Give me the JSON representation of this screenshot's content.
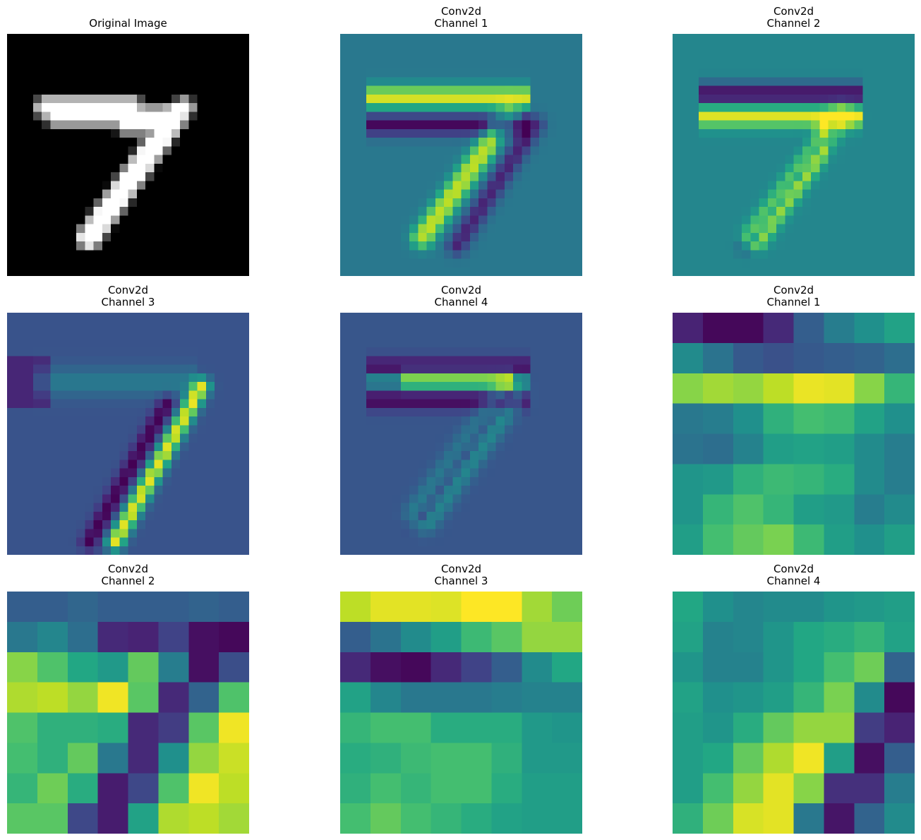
{
  "chart_data": {
    "type": "heatmap",
    "layout": "3x3 grid of image panels, axes off",
    "panels": [
      {
        "id": "original",
        "title": [
          "Original Image"
        ],
        "colormap": "gray",
        "size": [
          28,
          28
        ],
        "description_source": "MNIST digit 7",
        "strokes": [
          {
            "from": [
              8,
              4
            ],
            "to": [
              8,
              14
            ],
            "w": 1.1
          },
          {
            "from": [
              9,
              5
            ],
            "to": [
              9,
              19
            ],
            "w": 1.0
          },
          {
            "from": [
              10,
              13
            ],
            "to": [
              10,
              17
            ],
            "w": 0.9
          },
          {
            "from": [
              8,
              20
            ],
            "to": [
              9,
              18
            ],
            "w": 1.0
          },
          {
            "from": [
              9,
              19
            ],
            "to": [
              23,
              9
            ],
            "w": 1.3
          }
        ]
      },
      {
        "id": "c1_ch1",
        "title": [
          "Conv2d",
          "Channel 1"
        ],
        "colormap": "viridis",
        "size": [
          28,
          28
        ]
      },
      {
        "id": "c1_ch2",
        "title": [
          "Conv2d",
          "Channel 2"
        ],
        "colormap": "viridis",
        "size": [
          28,
          28
        ]
      },
      {
        "id": "c1_ch3",
        "title": [
          "Conv2d",
          "Channel 3"
        ],
        "colormap": "viridis",
        "size": [
          28,
          28
        ]
      },
      {
        "id": "c1_ch4",
        "title": [
          "Conv2d",
          "Channel 4"
        ],
        "colormap": "viridis",
        "size": [
          28,
          28
        ]
      },
      {
        "id": "c2_ch1",
        "title": [
          "Conv2d",
          "Channel 1"
        ],
        "colormap": "viridis",
        "size": [
          8,
          8
        ],
        "values": [
          [
            0.1,
            0.02,
            0.02,
            0.12,
            0.3,
            0.42,
            0.5,
            0.58
          ],
          [
            0.48,
            0.38,
            0.28,
            0.25,
            0.28,
            0.3,
            0.32,
            0.36
          ],
          [
            0.82,
            0.86,
            0.84,
            0.9,
            0.97,
            0.96,
            0.82,
            0.66
          ],
          [
            0.4,
            0.42,
            0.5,
            0.64,
            0.7,
            0.68,
            0.58,
            0.5
          ],
          [
            0.38,
            0.36,
            0.44,
            0.56,
            0.58,
            0.56,
            0.48,
            0.42
          ],
          [
            0.52,
            0.54,
            0.64,
            0.68,
            0.66,
            0.62,
            0.48,
            0.42
          ],
          [
            0.52,
            0.66,
            0.72,
            0.66,
            0.56,
            0.54,
            0.42,
            0.48
          ],
          [
            0.56,
            0.7,
            0.76,
            0.8,
            0.68,
            0.56,
            0.5,
            0.56
          ]
        ]
      },
      {
        "id": "c2_ch2",
        "title": [
          "Conv2d",
          "Channel 2"
        ],
        "colormap": "viridis",
        "size": [
          8,
          8
        ],
        "values": [
          [
            0.3,
            0.3,
            0.33,
            0.3,
            0.3,
            0.3,
            0.32,
            0.3
          ],
          [
            0.4,
            0.46,
            0.36,
            0.12,
            0.1,
            0.2,
            0.04,
            0.02
          ],
          [
            0.82,
            0.72,
            0.6,
            0.54,
            0.76,
            0.42,
            0.04,
            0.24
          ],
          [
            0.88,
            0.9,
            0.84,
            0.98,
            0.74,
            0.12,
            0.32,
            0.72
          ],
          [
            0.72,
            0.64,
            0.64,
            0.62,
            0.12,
            0.18,
            0.74,
            0.98
          ],
          [
            0.7,
            0.64,
            0.76,
            0.4,
            0.12,
            0.5,
            0.84,
            0.92
          ],
          [
            0.66,
            0.78,
            0.62,
            0.08,
            0.22,
            0.72,
            0.98,
            0.9
          ],
          [
            0.74,
            0.74,
            0.22,
            0.08,
            0.58,
            0.88,
            0.9,
            0.86
          ]
        ]
      },
      {
        "id": "c2_ch3",
        "title": [
          "Conv2d",
          "Channel 3"
        ],
        "colormap": "viridis",
        "size": [
          8,
          8
        ],
        "values": [
          [
            0.9,
            0.96,
            0.96,
            0.95,
            1.0,
            1.0,
            0.86,
            0.78
          ],
          [
            0.3,
            0.38,
            0.48,
            0.56,
            0.68,
            0.74,
            0.84,
            0.84
          ],
          [
            0.12,
            0.04,
            0.02,
            0.12,
            0.2,
            0.3,
            0.48,
            0.6
          ],
          [
            0.58,
            0.46,
            0.4,
            0.4,
            0.4,
            0.42,
            0.44,
            0.44
          ],
          [
            0.66,
            0.7,
            0.7,
            0.62,
            0.62,
            0.62,
            0.54,
            0.52
          ],
          [
            0.62,
            0.64,
            0.68,
            0.7,
            0.7,
            0.64,
            0.54,
            0.54
          ],
          [
            0.64,
            0.7,
            0.66,
            0.7,
            0.7,
            0.62,
            0.56,
            0.56
          ],
          [
            0.7,
            0.76,
            0.7,
            0.66,
            0.62,
            0.58,
            0.56,
            0.56
          ]
        ]
      },
      {
        "id": "c2_ch4",
        "title": [
          "Conv2d",
          "Channel 4"
        ],
        "colormap": "viridis",
        "size": [
          8,
          8
        ],
        "values": [
          [
            0.6,
            0.5,
            0.46,
            0.48,
            0.48,
            0.52,
            0.54,
            0.56
          ],
          [
            0.58,
            0.44,
            0.46,
            0.52,
            0.6,
            0.62,
            0.66,
            0.58
          ],
          [
            0.52,
            0.44,
            0.44,
            0.52,
            0.6,
            0.7,
            0.78,
            0.32
          ],
          [
            0.58,
            0.5,
            0.52,
            0.56,
            0.66,
            0.8,
            0.48,
            0.02
          ],
          [
            0.56,
            0.52,
            0.62,
            0.76,
            0.84,
            0.84,
            0.18,
            0.1
          ],
          [
            0.56,
            0.6,
            0.76,
            0.88,
            0.98,
            0.56,
            0.04,
            0.3
          ],
          [
            0.56,
            0.7,
            0.84,
            0.96,
            0.82,
            0.14,
            0.14,
            0.42
          ],
          [
            0.64,
            0.78,
            0.94,
            0.96,
            0.4,
            0.06,
            0.32,
            0.48
          ]
        ]
      }
    ]
  }
}
